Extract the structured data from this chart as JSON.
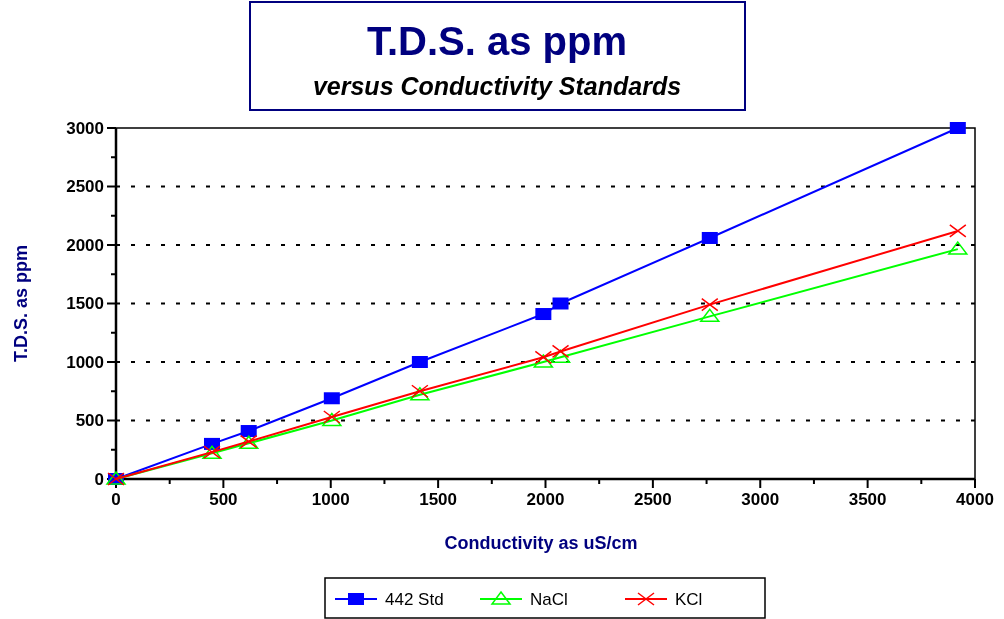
{
  "chart_data": {
    "type": "line",
    "title": "T.D.S. as ppm",
    "subtitle": "versus Conductivity Standards",
    "xlabel": "Conductivity as uS/cm",
    "ylabel": "T.D.S. as ppm",
    "xlim": [
      0,
      4000
    ],
    "ylim": [
      0,
      3000
    ],
    "xticks": [
      0,
      {
        "value": 250,
        "label": null
      },
      500,
      {
        "value": 750,
        "label": null
      },
      1000,
      {
        "value": 1250,
        "label": null
      },
      1500,
      {
        "value": 1750,
        "label": null
      },
      2000,
      {
        "value": 2250,
        "label": null
      },
      2500,
      {
        "value": 2750,
        "label": null
      },
      3000,
      {
        "value": 3250,
        "label": null
      },
      3500,
      {
        "value": 3750,
        "label": null
      },
      4000
    ],
    "yticks": [
      0,
      {
        "value": 250,
        "label": null
      },
      500,
      {
        "value": 750,
        "label": null
      },
      1000,
      {
        "value": 1250,
        "label": null
      },
      1500,
      {
        "value": 1750,
        "label": null
      },
      2000,
      {
        "value": 2250,
        "label": null
      },
      2500,
      {
        "value": 2750,
        "label": null
      },
      3000
    ],
    "grid": "y",
    "legend": "bottom",
    "x": [
      0,
      447,
      618,
      1005,
      1415,
      1990,
      2070,
      2765,
      3920
    ],
    "series": [
      {
        "name": "442 Std",
        "color": "#0000ff",
        "marker": "square",
        "values": [
          0,
          300,
          410,
          690,
          1000,
          1410,
          1500,
          2060,
          3000
        ]
      },
      {
        "name": "NaCl",
        "color": "#00ff00",
        "marker": "triangle",
        "values": [
          0,
          220,
          305,
          500,
          720,
          1000,
          1040,
          1390,
          1965
        ]
      },
      {
        "name": "KCl",
        "color": "#ff0000",
        "marker": "cross",
        "values": [
          0,
          230,
          320,
          530,
          750,
          1040,
          1090,
          1490,
          2120
        ]
      }
    ]
  }
}
